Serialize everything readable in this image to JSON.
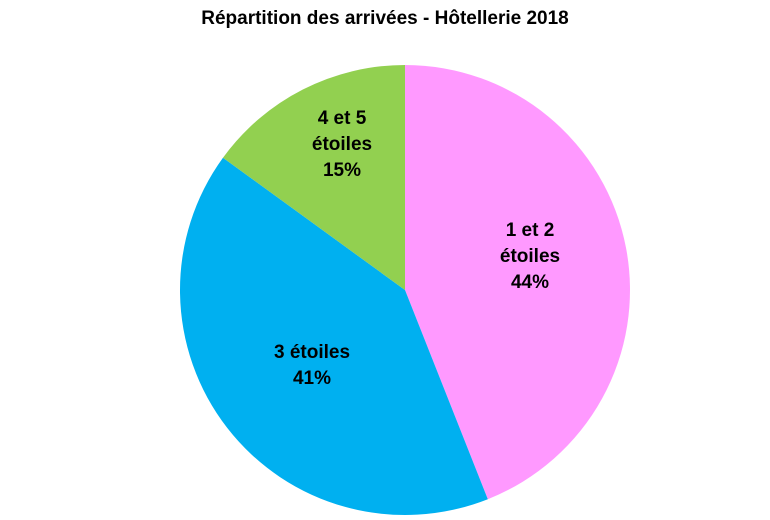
{
  "chart_data": {
    "type": "pie",
    "title": "Répartition des arrivées - Hôtellerie 2018",
    "start": "top",
    "direction": "clockwise",
    "slices": [
      {
        "name": "1 et 2 étoiles",
        "value": 44,
        "label_lines": [
          "1 et 2",
          "étoiles",
          "44%"
        ],
        "color": "#FF99FF"
      },
      {
        "name": "3 étoiles",
        "value": 41,
        "label_lines": [
          "3 étoiles",
          "41%"
        ],
        "color": "#00B0F0"
      },
      {
        "name": "4 et 5 étoiles",
        "value": 15,
        "label_lines": [
          "4 et 5",
          "étoiles",
          "15%"
        ],
        "color": "#92D050"
      }
    ]
  }
}
